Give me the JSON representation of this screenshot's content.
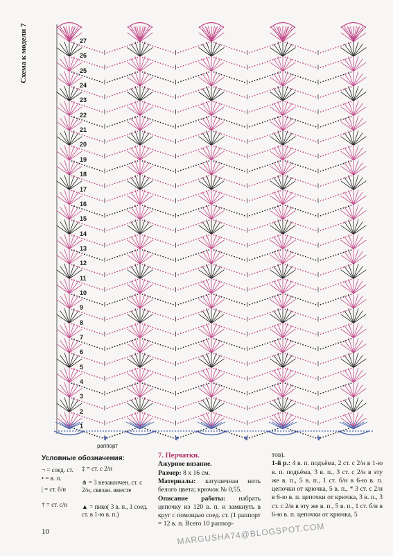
{
  "scheme": {
    "title": "Схема к модели 7",
    "row_numbers": [
      "27",
      "26",
      "25",
      "24",
      "23",
      "22",
      "21",
      "20",
      "19",
      "18",
      "17",
      "16",
      "15",
      "14",
      "13",
      "12",
      "11",
      "10",
      "9",
      "8",
      "7",
      "6",
      "5",
      "4",
      "3",
      "2",
      "1"
    ],
    "rapport_label": "раппорт",
    "colors": {
      "pink": "#c2478a",
      "black": "#222222",
      "blue": "#4d65b0"
    }
  },
  "legend": {
    "heading": "Условные обозначения:",
    "items": [
      {
        "symbol": "¬",
        "text": "= соед. ст."
      },
      {
        "symbol": "•",
        "text": "= в. п."
      },
      {
        "symbol": "|",
        "text": "= ст. б/н"
      },
      {
        "symbol": "†",
        "text": "= ст. с/н"
      },
      {
        "symbol": "‡",
        "text": "= ст. с 2/н"
      },
      {
        "symbol": "⋔",
        "text": "= 3 незакончен. ст. с 2/н, связан. вместе"
      },
      {
        "symbol": "▲",
        "text": "= пико( 3 в. п., 1 соед. ст. в 1-ю в. п.)"
      }
    ]
  },
  "article": {
    "title": "7. Перчатки.",
    "subtitle": "Ажурное вязание.",
    "size_label": "Размер:",
    "size_value": "8 х 16 см.",
    "materials_label": "Материалы:",
    "materials_value": "катушечная нить белого цвета; крючок № 0,55.",
    "desc_label": "Описание работы:",
    "desc_value": "набрать цепочку из 120 в. п. и замкнуть в круг с помощью соед. ст. (1 раппорт = 12 в. п. Всего 10 раппор-",
    "cont_prefix": "тов).",
    "row1_label": "1-й р.:",
    "row1_text": "4 в. п. подъёма, 2 ст. с 2/н в 1-ю в. п. подъёма, 3 в. п., 3 ст. с 2/н в эту же в. п., 5 в. п., 1 ст. б/н в 6-ю в. п. цепочки от крючка, 5 в. п., * 3 ст. с 2/н в 6-ю в. п. цепочки от крючка, 3 в. п., 3 ст. с 2/н в эту же в. п., 5 в. п., 1 ст. б/н в 6-ю в. п. цепочки от крючка, 5"
  },
  "page_number": "10",
  "watermark": "MARGUSHA74@BLOGSPOT.COM"
}
